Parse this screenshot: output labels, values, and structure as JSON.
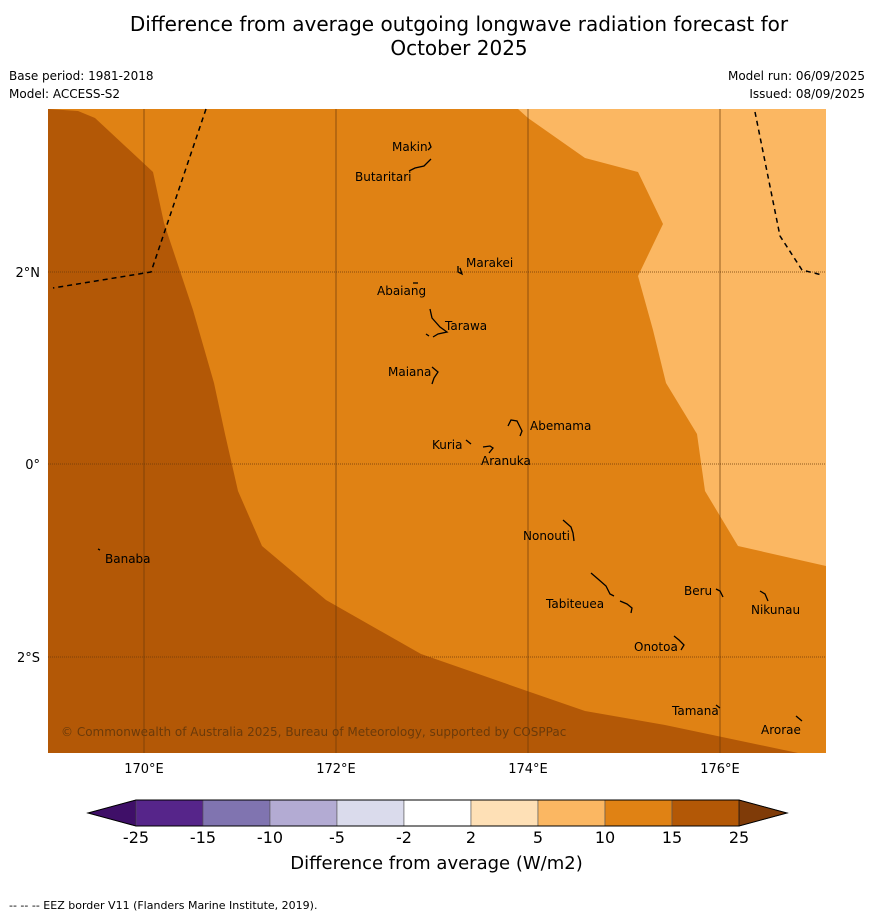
{
  "title_line1": "Difference from average outgoing longwave radiation forecast for",
  "title_line2": "October 2025",
  "base_period": "Base period: 1981-2018",
  "model": "Model: ACCESS-S2",
  "model_run": "Model run: 06/09/2025",
  "issued": "Issued: 08/09/2025",
  "copyright": "© Commonwealth of Australia 2025, Bureau of Meteorology, supported by COSPPac",
  "axes": {
    "lon_ticks": [
      "170°E",
      "172°E",
      "174°E",
      "176°E"
    ],
    "lat_ticks": [
      "2°N",
      "0°",
      "2°S"
    ]
  },
  "islands": [
    "Makin",
    "Butaritari",
    "Marakei",
    "Abaiang",
    "Tarawa",
    "Maiana",
    "Abemama",
    "Kuria",
    "Aranuka",
    "Banaba",
    "Nonouti",
    "Beru",
    "Tabiteuea",
    "Nikunau",
    "Onotoa",
    "Tamana",
    "Arorae"
  ],
  "colorbar": {
    "title": "Difference from average (W/m2)",
    "labels": [
      "-25",
      "-15",
      "-10",
      "-5",
      "-2",
      "2",
      "5",
      "10",
      "15",
      "25"
    ],
    "colors": [
      "#3f0f68",
      "#56258a",
      "#8074b0",
      "#b3abd3",
      "#dadbec",
      "#ffffff",
      "#fee0b6",
      "#fbb762",
      "#e08214",
      "#b35806",
      "#7f3b08"
    ]
  },
  "footer": "--  --  -- EEZ border V11 (Flanders Marine Institute, 2019)."
}
